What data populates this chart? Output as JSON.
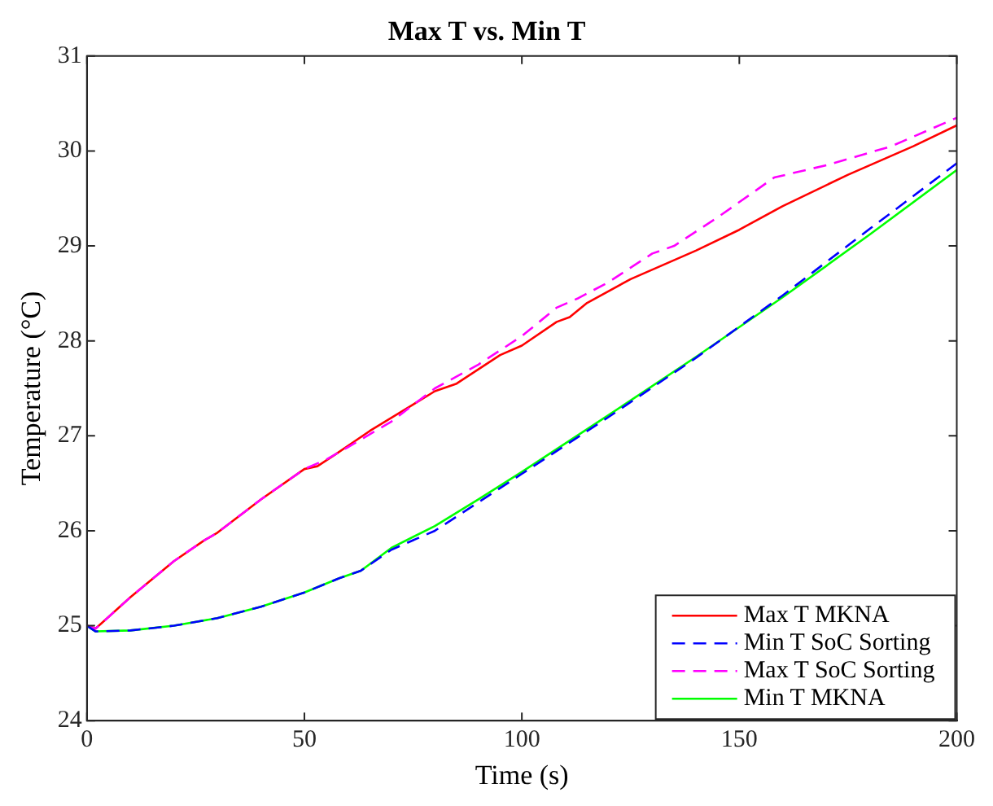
{
  "chart_data": {
    "type": "line",
    "title": "Max T vs. Min T",
    "xlabel": "Time (s)",
    "ylabel": "Temperature (°C)",
    "xlim": [
      0,
      200
    ],
    "xticks": [
      0,
      50,
      100,
      150,
      200
    ],
    "ylim": [
      24,
      31
    ],
    "yticks": [
      24,
      25,
      26,
      27,
      28,
      29,
      30,
      31
    ],
    "grid": false,
    "legend": "bottom right",
    "marker": "none",
    "series": [
      {
        "name": "Max T MKNA",
        "color": "#ff0000",
        "line_style": "solid",
        "x": [
          0,
          2,
          10,
          20,
          27,
          30,
          40,
          50,
          53,
          57,
          65,
          75,
          80,
          85,
          95,
          100,
          108,
          111,
          115,
          125,
          140,
          150,
          160,
          175,
          190,
          200
        ],
        "values": [
          25,
          24.97,
          25.3,
          25.68,
          25.9,
          25.98,
          26.33,
          26.65,
          26.68,
          26.8,
          27.05,
          27.33,
          27.47,
          27.55,
          27.85,
          27.95,
          28.2,
          28.25,
          28.4,
          28.65,
          28.95,
          29.17,
          29.42,
          29.75,
          30.05,
          30.27
        ]
      },
      {
        "name": "Min T SoC Sorting",
        "color": "#0000ff",
        "line_style": "dashed",
        "x": [
          0,
          2,
          10,
          20,
          30,
          40,
          50,
          58,
          63,
          70,
          80,
          90,
          100,
          120,
          140,
          160,
          180,
          200
        ],
        "values": [
          25,
          24.94,
          24.95,
          25.0,
          25.08,
          25.2,
          25.35,
          25.5,
          25.58,
          25.8,
          26.0,
          26.3,
          26.6,
          27.2,
          27.82,
          28.48,
          29.18,
          29.87
        ]
      },
      {
        "name": "Max T SoC Sorting",
        "color": "#ff00ff",
        "line_style": "dashed",
        "x": [
          0,
          2,
          10,
          20,
          27,
          30,
          40,
          50,
          55,
          60,
          70,
          80,
          90,
          100,
          108,
          113,
          120,
          130,
          135,
          145,
          158,
          170,
          185,
          200
        ],
        "values": [
          25,
          24.97,
          25.3,
          25.68,
          25.9,
          25.98,
          26.33,
          26.65,
          26.75,
          26.88,
          27.15,
          27.5,
          27.75,
          28.05,
          28.35,
          28.45,
          28.62,
          28.92,
          29.0,
          29.3,
          29.72,
          29.85,
          30.05,
          30.35
        ]
      },
      {
        "name": "Min T MKNA",
        "color": "#00ff00",
        "line_style": "solid",
        "x": [
          0,
          2,
          10,
          20,
          30,
          40,
          50,
          58,
          63,
          70,
          80,
          90,
          100,
          120,
          140,
          160,
          180,
          200
        ],
        "values": [
          25,
          24.94,
          24.95,
          25.0,
          25.08,
          25.2,
          25.35,
          25.5,
          25.58,
          25.82,
          26.05,
          26.33,
          26.62,
          27.22,
          27.83,
          28.46,
          29.12,
          29.8
        ]
      }
    ]
  }
}
